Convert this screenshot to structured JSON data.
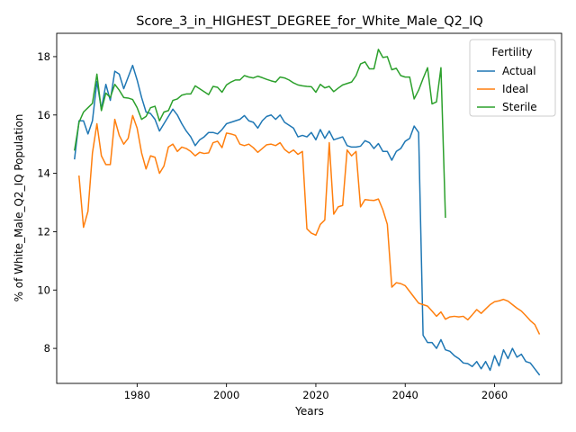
{
  "chart_data": {
    "type": "line",
    "title": "Score_3_in_HIGHEST_DEGREE_for_White_Male_Q2_IQ",
    "xlabel": "Years",
    "ylabel": "% of White_Male_Q2_IQ Population",
    "xlim": [
      1962,
      2075
    ],
    "ylim": [
      6.8,
      18.8
    ],
    "xticks": [
      1980,
      2000,
      2020,
      2040,
      2060
    ],
    "yticks": [
      8,
      10,
      12,
      14,
      16,
      18
    ],
    "grid": false,
    "legend": {
      "title": "Fertility",
      "placement": "top-right"
    },
    "series": [
      {
        "name": "Actual",
        "color": "#1f77b4",
        "x": [
          1966,
          1967,
          1968,
          1969,
          1970,
          1971,
          1972,
          1973,
          1974,
          1975,
          1976,
          1977,
          1978,
          1979,
          1980,
          1981,
          1982,
          1983,
          1984,
          1985,
          1986,
          1987,
          1988,
          1989,
          1990,
          1991,
          1992,
          1993,
          1994,
          1995,
          1996,
          1997,
          1998,
          1999,
          2000,
          2001,
          2002,
          2003,
          2004,
          2005,
          2006,
          2007,
          2008,
          2009,
          2010,
          2011,
          2012,
          2013,
          2014,
          2015,
          2016,
          2017,
          2018,
          2019,
          2020,
          2021,
          2022,
          2023,
          2024,
          2025,
          2026,
          2027,
          2028,
          2029,
          2030,
          2031,
          2032,
          2033,
          2034,
          2035,
          2036,
          2037,
          2038,
          2039,
          2040,
          2041,
          2042,
          2043,
          2044,
          2045,
          2046,
          2047,
          2048,
          2049,
          2050,
          2051,
          2052,
          2053,
          2054,
          2055,
          2056,
          2057,
          2058,
          2059,
          2060,
          2061,
          2062,
          2063,
          2064,
          2065,
          2066,
          2067,
          2068,
          2069,
          2070
        ],
        "y": [
          14.5,
          15.8,
          15.8,
          15.35,
          15.8,
          17.15,
          16.2,
          17.05,
          16.5,
          17.5,
          17.4,
          16.9,
          17.3,
          17.7,
          17.2,
          16.6,
          16.1,
          16.05,
          15.85,
          15.45,
          15.7,
          15.95,
          16.2,
          16.0,
          15.7,
          15.45,
          15.25,
          14.95,
          15.15,
          15.25,
          15.4,
          15.4,
          15.35,
          15.5,
          15.7,
          15.75,
          15.8,
          15.85,
          15.98,
          15.8,
          15.75,
          15.55,
          15.8,
          15.95,
          16.0,
          15.85,
          16.0,
          15.75,
          15.65,
          15.55,
          15.25,
          15.3,
          15.25,
          15.4,
          15.15,
          15.5,
          15.2,
          15.45,
          15.15,
          15.2,
          15.25,
          14.95,
          14.9,
          14.9,
          14.93,
          15.12,
          15.05,
          14.85,
          15.02,
          14.75,
          14.75,
          14.45,
          14.75,
          14.85,
          15.1,
          15.2,
          15.62,
          15.4,
          8.45,
          8.2,
          8.2,
          8.0,
          8.3,
          7.95,
          7.9,
          7.75,
          7.65,
          7.5,
          7.48,
          7.38,
          7.55,
          7.3,
          7.55,
          7.25,
          7.75,
          7.4,
          7.95,
          7.65,
          8.0,
          7.7,
          7.8,
          7.55,
          7.5,
          7.3,
          7.1
        ]
      },
      {
        "name": "Ideal",
        "color": "#ff7f0e",
        "x": [
          1967,
          1968,
          1969,
          1970,
          1971,
          1972,
          1973,
          1974,
          1975,
          1976,
          1977,
          1978,
          1979,
          1980,
          1981,
          1982,
          1983,
          1984,
          1985,
          1986,
          1987,
          1988,
          1989,
          1990,
          1991,
          1992,
          1993,
          1994,
          1995,
          1996,
          1997,
          1998,
          1999,
          2000,
          2001,
          2002,
          2003,
          2004,
          2005,
          2006,
          2007,
          2008,
          2009,
          2010,
          2011,
          2012,
          2013,
          2014,
          2015,
          2016,
          2017,
          2018,
          2019,
          2020,
          2021,
          2022,
          2023,
          2024,
          2025,
          2026,
          2027,
          2028,
          2029,
          2030,
          2031,
          2032,
          2033,
          2034,
          2035,
          2036,
          2037,
          2038,
          2039,
          2040,
          2041,
          2042,
          2043,
          2044,
          2045,
          2046,
          2047,
          2048,
          2049,
          2050,
          2051,
          2052,
          2053,
          2054,
          2055,
          2056,
          2057,
          2058,
          2059,
          2060,
          2061,
          2062,
          2063,
          2064,
          2065,
          2066,
          2067,
          2068,
          2069,
          2070
        ],
        "y": [
          13.9,
          12.15,
          12.7,
          14.7,
          15.7,
          14.6,
          14.3,
          14.3,
          15.85,
          15.3,
          15.0,
          15.2,
          15.98,
          15.55,
          14.7,
          14.15,
          14.6,
          14.55,
          14.0,
          14.25,
          14.9,
          15.0,
          14.75,
          14.9,
          14.85,
          14.75,
          14.6,
          14.72,
          14.68,
          14.7,
          15.05,
          15.1,
          14.88,
          15.38,
          15.35,
          15.3,
          15.0,
          14.95,
          15.0,
          14.88,
          14.72,
          14.85,
          14.98,
          15.0,
          14.95,
          15.05,
          14.82,
          14.7,
          14.8,
          14.65,
          14.75,
          12.1,
          11.95,
          11.88,
          12.25,
          12.4,
          15.05,
          12.6,
          12.85,
          12.9,
          14.8,
          14.6,
          14.75,
          12.85,
          13.1,
          13.08,
          13.07,
          13.12,
          12.75,
          12.25,
          10.1,
          10.25,
          10.22,
          10.15,
          9.95,
          9.75,
          9.55,
          9.5,
          9.45,
          9.28,
          9.1,
          9.25,
          9.0,
          9.08,
          9.1,
          9.08,
          9.1,
          8.98,
          9.15,
          9.33,
          9.2,
          9.35,
          9.5,
          9.6,
          9.63,
          9.68,
          9.62,
          9.5,
          9.38,
          9.28,
          9.12,
          8.95,
          8.82,
          8.5
        ]
      },
      {
        "name": "Sterile",
        "color": "#2ca02c",
        "x": [
          1966,
          1967,
          1968,
          1969,
          1970,
          1971,
          1972,
          1973,
          1974,
          1975,
          1976,
          1977,
          1978,
          1979,
          1980,
          1981,
          1982,
          1983,
          1984,
          1985,
          1986,
          1987,
          1988,
          1989,
          1990,
          1991,
          1992,
          1993,
          1994,
          1995,
          1996,
          1997,
          1998,
          1999,
          2000,
          2001,
          2002,
          2003,
          2004,
          2005,
          2006,
          2007,
          2008,
          2009,
          2010,
          2011,
          2012,
          2013,
          2014,
          2015,
          2016,
          2017,
          2018,
          2019,
          2020,
          2021,
          2022,
          2023,
          2024,
          2025,
          2026,
          2027,
          2028,
          2029,
          2030,
          2031,
          2032,
          2033,
          2034,
          2035,
          2036,
          2037,
          2038,
          2039,
          2040,
          2041,
          2042,
          2043,
          2044,
          2045,
          2046,
          2047,
          2048,
          2049
        ],
        "y": [
          14.8,
          15.75,
          16.1,
          16.25,
          16.4,
          17.4,
          16.15,
          16.75,
          16.6,
          17.05,
          16.85,
          16.6,
          16.58,
          16.53,
          16.25,
          15.85,
          15.95,
          16.25,
          16.3,
          15.8,
          16.1,
          16.15,
          16.5,
          16.55,
          16.68,
          16.72,
          16.72,
          17.0,
          16.9,
          16.8,
          16.7,
          16.98,
          16.95,
          16.78,
          17.03,
          17.13,
          17.2,
          17.2,
          17.35,
          17.3,
          17.27,
          17.33,
          17.28,
          17.22,
          17.17,
          17.13,
          17.3,
          17.27,
          17.2,
          17.1,
          17.03,
          17.0,
          16.98,
          16.97,
          16.78,
          17.05,
          16.93,
          16.98,
          16.8,
          16.92,
          17.03,
          17.08,
          17.13,
          17.35,
          17.75,
          17.82,
          17.58,
          17.58,
          18.25,
          17.97,
          18.0,
          17.55,
          17.6,
          17.35,
          17.3,
          17.3,
          16.55,
          16.85,
          17.25,
          17.62,
          16.38,
          16.45,
          17.62,
          12.5
        ]
      }
    ]
  }
}
